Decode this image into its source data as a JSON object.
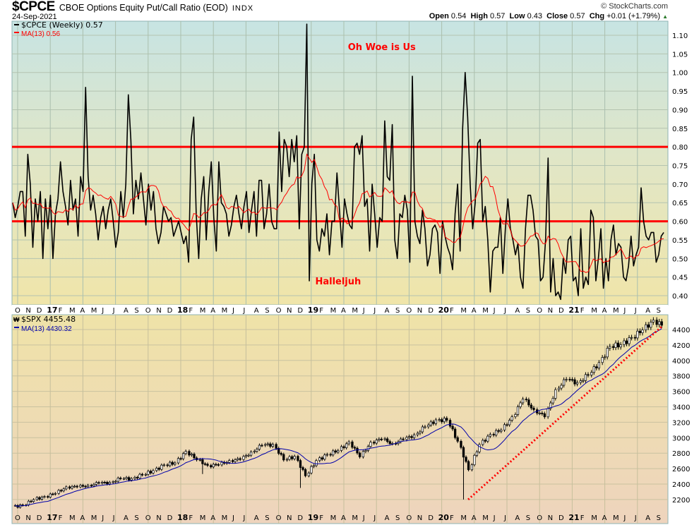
{
  "header": {
    "symbol": "$CPCE",
    "description": "CBOE Options Equity Put/Call Ratio (EOD)",
    "exchange": "INDX",
    "date": "24-Sep-2021",
    "copyright": "© StockCharts.com",
    "open_label": "Open",
    "open": "0.54",
    "high_label": "High",
    "high": "0.57",
    "low_label": "Low",
    "low": "0.43",
    "close_label": "Close",
    "close": "0.57",
    "chg_label": "Chg",
    "chg": "+0.01 (+1.79%)",
    "chg_arrow": "▲"
  },
  "colors": {
    "price_line": "#000000",
    "ma_top": "#ff0000",
    "ma_bottom": "#0000aa",
    "threshold": "#ff0000",
    "trendline": "#ff0000"
  },
  "chart_data": [
    {
      "type": "line",
      "title": "$CPCE (Weekly)",
      "legend": [
        {
          "label": "$CPCE (Weekly) 0.57",
          "color": "#000000"
        },
        {
          "label": "MA(13) 0.56",
          "color": "#ff0000"
        }
      ],
      "ylim": [
        0.38,
        1.14
      ],
      "yticks": [
        "1.10",
        "1.05",
        "1.00",
        "0.95",
        "0.90",
        "0.85",
        "0.80",
        "0.75",
        "0.70",
        "0.65",
        "0.60",
        "0.55",
        "0.50",
        "0.45",
        "0.40"
      ],
      "ma_period": 13,
      "reference_lines": [
        0.8,
        0.6
      ],
      "annotations": [
        {
          "text": "Oh Woe is Us",
          "value": 1.06,
          "week": 146
        },
        {
          "text": "Halleljuh",
          "value": 0.43,
          "week": 133
        }
      ],
      "values": [
        0.65,
        0.61,
        0.64,
        0.68,
        0.68,
        0.56,
        0.78,
        0.7,
        0.53,
        0.66,
        0.6,
        0.68,
        0.5,
        0.66,
        0.58,
        0.67,
        0.5,
        0.62,
        0.66,
        0.76,
        0.68,
        0.64,
        0.59,
        0.71,
        0.63,
        0.66,
        0.56,
        0.72,
        0.68,
        0.96,
        0.72,
        0.63,
        0.67,
        0.62,
        0.55,
        0.61,
        0.64,
        0.58,
        0.63,
        0.66,
        0.6,
        0.53,
        0.57,
        0.68,
        0.61,
        0.7,
        0.94,
        0.82,
        0.62,
        0.71,
        0.66,
        0.73,
        0.66,
        0.59,
        0.7,
        0.63,
        0.68,
        0.58,
        0.54,
        0.57,
        0.64,
        0.62,
        0.6,
        0.61,
        0.56,
        0.58,
        0.6,
        0.57,
        0.54,
        0.56,
        0.49,
        0.82,
        0.88,
        0.62,
        0.5,
        0.66,
        0.72,
        0.55,
        0.68,
        0.76,
        0.61,
        0.52,
        0.76,
        0.65,
        0.64,
        0.62,
        0.56,
        0.59,
        0.64,
        0.67,
        0.62,
        0.58,
        0.64,
        0.68,
        0.57,
        0.63,
        0.68,
        0.56,
        0.71,
        0.71,
        0.58,
        0.62,
        0.7,
        0.6,
        0.58,
        0.58,
        0.84,
        0.68,
        0.82,
        0.8,
        0.72,
        0.82,
        0.76,
        0.83,
        0.58,
        0.78,
        0.8,
        1.13,
        0.44,
        0.7,
        0.78,
        0.55,
        0.52,
        0.58,
        0.56,
        0.62,
        0.51,
        0.6,
        0.6,
        0.73,
        0.63,
        0.53,
        0.66,
        0.62,
        0.59,
        0.58,
        0.8,
        0.81,
        0.78,
        0.83,
        0.64,
        0.66,
        0.52,
        0.7,
        0.62,
        0.53,
        0.61,
        0.6,
        0.87,
        0.72,
        0.71,
        0.86,
        0.55,
        0.5,
        0.62,
        0.61,
        0.67,
        0.63,
        0.49,
        0.99,
        0.6,
        0.56,
        0.54,
        0.63,
        0.58,
        0.48,
        0.51,
        0.58,
        0.59,
        0.57,
        0.46,
        0.6,
        0.56,
        0.53,
        0.51,
        0.47,
        0.62,
        0.7,
        0.52,
        0.85,
        1.0,
        0.88,
        0.7,
        0.58,
        0.65,
        0.81,
        0.82,
        0.6,
        0.64,
        0.55,
        0.41,
        0.52,
        0.53,
        0.53,
        0.61,
        0.46,
        0.58,
        0.66,
        0.58,
        0.55,
        0.51,
        0.54,
        0.45,
        0.42,
        0.58,
        0.67,
        0.67,
        0.63,
        0.56,
        0.55,
        0.44,
        0.45,
        0.55,
        0.77,
        0.41,
        0.5,
        0.4,
        0.41,
        0.39,
        0.5,
        0.46,
        0.55,
        0.56,
        0.44,
        0.45,
        0.4,
        0.58,
        0.42,
        0.45,
        0.43,
        0.63,
        0.61,
        0.44,
        0.5,
        0.58,
        0.42,
        0.5,
        0.44,
        0.55,
        0.59,
        0.51,
        0.54,
        0.53,
        0.45,
        0.44,
        0.48,
        0.56,
        0.48,
        0.51,
        0.53,
        0.69,
        0.6,
        0.56,
        0.55,
        0.57,
        0.57,
        0.49,
        0.51,
        0.56,
        0.57
      ]
    },
    {
      "type": "bar",
      "title": "$SPX",
      "legend": [
        {
          "label": "$SPX 4455.48",
          "color": "#000000"
        },
        {
          "label": "MA(13) 4430.32",
          "color": "#0000aa"
        }
      ],
      "ylim": [
        2120,
        4560
      ],
      "yticks": [
        "4400",
        "4200",
        "4000",
        "3800",
        "3600",
        "3400",
        "3200",
        "3000",
        "2800",
        "2600",
        "2400",
        "2200"
      ],
      "monthly_close": [
        2126,
        2199,
        2239,
        2279,
        2364,
        2363,
        2384,
        2412,
        2423,
        2470,
        2472,
        2519,
        2575,
        2648,
        2674,
        2824,
        2714,
        2641,
        2648,
        2705,
        2718,
        2816,
        2902,
        2914,
        2712,
        2760,
        2507,
        2704,
        2784,
        2834,
        2946,
        2752,
        2942,
        2980,
        2926,
        2977,
        3038,
        3141,
        3231,
        3226,
        2954,
        2585,
        2912,
        3044,
        3100,
        3271,
        3500,
        3363,
        3270,
        3622,
        3756,
        3714,
        3811,
        3973,
        4181,
        4204,
        4298,
        4395,
        4523,
        4455
      ],
      "lows": [
        {
          "month": 17,
          "value": 2530
        },
        {
          "month": 26,
          "value": 2350
        },
        {
          "month": 41,
          "value": 2200
        }
      ],
      "trendline": {
        "from": {
          "month": 41.5,
          "value": 2200
        },
        "to": {
          "month": 59.7,
          "value": 4440
        },
        "style": "dotted"
      }
    }
  ],
  "x_axis": {
    "months": [
      "O",
      "N",
      "D",
      "17",
      "F",
      "M",
      "A",
      "M",
      "J",
      "J",
      "A",
      "S",
      "O",
      "N",
      "D",
      "18",
      "F",
      "M",
      "A",
      "M",
      "J",
      "J",
      "A",
      "S",
      "O",
      "N",
      "D",
      "19",
      "F",
      "M",
      "A",
      "M",
      "J",
      "J",
      "A",
      "S",
      "O",
      "N",
      "D",
      "20",
      "F",
      "M",
      "A",
      "M",
      "J",
      "J",
      "A",
      "S",
      "O",
      "N",
      "D",
      "21",
      "F",
      "M",
      "A",
      "M",
      "J",
      "J",
      "A",
      "S"
    ]
  }
}
